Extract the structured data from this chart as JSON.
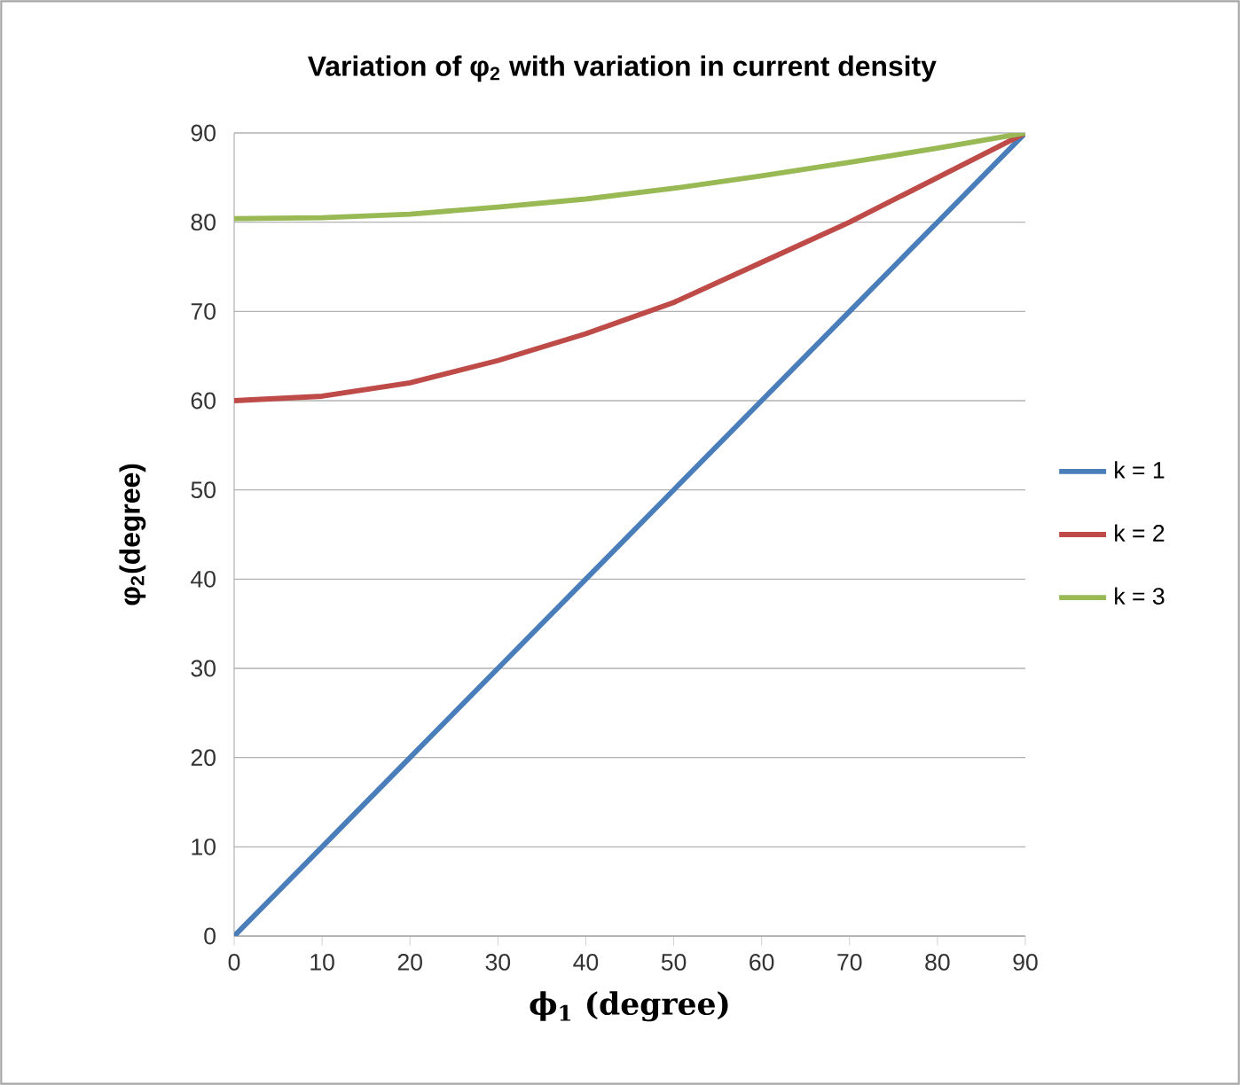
{
  "chart_data": {
    "type": "line",
    "title": "Variation of φ$_{2}$ with variation in current density",
    "xlabel": "ϕ$_{1}$ (degree)",
    "ylabel": "φ$_{2}$(degree)",
    "x": [
      0,
      10,
      20,
      30,
      40,
      50,
      60,
      70,
      80,
      90
    ],
    "series": [
      {
        "name": "k = 1",
        "color": "#4a7ebb",
        "values": [
          0,
          10,
          20,
          30,
          40,
          50,
          60,
          70,
          80,
          90
        ]
      },
      {
        "name": "k = 2",
        "color": "#be4b48",
        "values": [
          60,
          60.5,
          62,
          64.5,
          67.5,
          71,
          75.5,
          80,
          85,
          90
        ]
      },
      {
        "name": "k = 3",
        "color": "#98b954",
        "values": [
          80.4,
          80.5,
          80.9,
          81.7,
          82.6,
          83.8,
          85.2,
          86.7,
          88.3,
          90
        ]
      }
    ],
    "xlim": [
      0,
      90
    ],
    "ylim": [
      0,
      90
    ],
    "xticks": [
      0,
      10,
      20,
      30,
      40,
      50,
      60,
      70,
      80,
      90
    ],
    "yticks": [
      0,
      10,
      20,
      30,
      40,
      50,
      60,
      70,
      80,
      90
    ],
    "grid": "y",
    "legend": "right",
    "marker": "none",
    "line_style": "solid"
  }
}
